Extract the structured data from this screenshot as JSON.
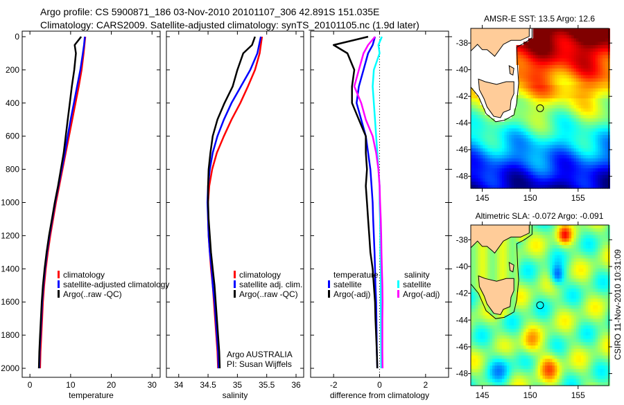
{
  "title_line1": "Argo profile: CS 5900871_186 03-Nov-2010 20101107_306 42.891S 151.035E",
  "title_line2": "Climatology: CARS2009. Satellite-adjusted climatology: synTS_20101105.nc (1.9d later)",
  "footer_stamp": "CSIRO 11-Nov-2010 10:31:09",
  "colors": {
    "climatology": "#ff0000",
    "satellite": "#0000ff",
    "argo": "#000000",
    "sal_satellite": "#00ffff",
    "sal_argo": "#ff00ff",
    "land": "#ffcc99"
  },
  "chart_data": [
    {
      "type": "line",
      "name": "temperature",
      "xlabel": "temperature",
      "ylabel": "",
      "xlim": [
        -1.9,
        32
      ],
      "ylim": [
        2000,
        0
      ],
      "xticks": [
        "0",
        "10",
        "20",
        "30"
      ],
      "xtick_values": [
        0,
        10,
        20,
        30
      ],
      "yticks": [
        "0",
        "200",
        "400",
        "600",
        "800",
        "1000",
        "1200",
        "1400",
        "1600",
        "1800",
        "2000"
      ],
      "ytick_values": [
        0,
        200,
        400,
        600,
        800,
        1000,
        1200,
        1400,
        1600,
        1800,
        2000
      ],
      "depth": [
        0,
        50,
        100,
        200,
        300,
        400,
        500,
        600,
        700,
        800,
        900,
        1000,
        1100,
        1200,
        1300,
        1400,
        1500,
        1600,
        1700,
        1800,
        1900,
        2000
      ],
      "series": [
        {
          "name": "climatology",
          "color": "#ff0000",
          "values": [
            13.6,
            13.4,
            13.2,
            12.7,
            12.0,
            11.2,
            10.4,
            9.6,
            8.8,
            8.0,
            7.2,
            6.4,
            5.7,
            5.0,
            4.4,
            3.9,
            3.5,
            3.2,
            3.0,
            2.8,
            2.6,
            2.5
          ]
        },
        {
          "name": "satellite-adjusted climatology",
          "color": "#0000ff",
          "values": [
            13.5,
            13.3,
            13.0,
            12.4,
            11.6,
            10.8,
            10.0,
            9.3,
            8.6,
            7.8,
            7.0,
            6.2,
            5.5,
            4.8,
            4.2,
            3.7,
            3.3,
            3.0,
            2.8,
            2.6,
            2.4,
            2.3
          ]
        },
        {
          "name": "Argo(..raw -QC)",
          "color": "#000000",
          "values": [
            12.6,
            11.0,
            11.3,
            10.9,
            10.3,
            9.8,
            9.3,
            8.8,
            8.3,
            7.6,
            6.9,
            6.1,
            5.4,
            4.7,
            4.1,
            3.6,
            3.2,
            2.9,
            2.7,
            2.5,
            2.3,
            2.2
          ]
        }
      ],
      "legend": [
        "climatology",
        "satellite-adjusted climatology",
        "Argo(..raw -QC)"
      ],
      "legend_position": "lower-center"
    },
    {
      "type": "line",
      "name": "salinity",
      "xlabel": "salinity",
      "xlim": [
        33.79,
        36.13
      ],
      "ylim": [
        2000,
        0
      ],
      "xticks": [
        "34",
        "34.5",
        "35",
        "35.5",
        "36"
      ],
      "xtick_values": [
        34,
        34.5,
        35,
        35.5,
        36
      ],
      "depth": [
        0,
        50,
        100,
        200,
        300,
        400,
        500,
        600,
        700,
        800,
        900,
        1000,
        1100,
        1200,
        1300,
        1400,
        1500,
        1600,
        1700,
        1800,
        1900,
        2000
      ],
      "series": [
        {
          "name": "climatology",
          "color": "#ff0000",
          "values": [
            35.42,
            35.4,
            35.38,
            35.3,
            35.18,
            35.05,
            34.9,
            34.77,
            34.65,
            34.57,
            34.52,
            34.5,
            34.5,
            34.51,
            34.53,
            34.55,
            34.58,
            34.6,
            34.62,
            34.64,
            34.66,
            34.67
          ]
        },
        {
          "name": "satellite adj. clim.",
          "color": "#0000ff",
          "values": [
            35.4,
            35.37,
            35.34,
            35.22,
            35.06,
            34.9,
            34.77,
            34.66,
            34.58,
            34.53,
            34.5,
            34.49,
            34.5,
            34.51,
            34.53,
            34.56,
            34.58,
            34.61,
            34.63,
            34.65,
            34.67,
            34.68
          ]
        },
        {
          "name": "Argo(..raw -QC)",
          "color": "#000000",
          "values": [
            35.3,
            35.25,
            35.1,
            35.0,
            34.92,
            34.78,
            34.66,
            34.58,
            34.54,
            34.51,
            34.5,
            34.5,
            34.51,
            34.53,
            34.55,
            34.58,
            34.61,
            34.63,
            34.65,
            34.67,
            34.69,
            34.7
          ]
        }
      ],
      "legend": [
        "climatology",
        "satellite adj. clim.",
        "Argo(..raw -QC)"
      ],
      "legend_position": "lower-right",
      "annotation": [
        "Argo AUSTRALIA",
        "PI: Susan Wijffels"
      ]
    },
    {
      "type": "line",
      "name": "difference",
      "xlabel": "difference from climatology",
      "xlim": [
        -3,
        3
      ],
      "ylim": [
        2000,
        0
      ],
      "xticks": [
        "-2",
        "0",
        "2"
      ],
      "xtick_values": [
        -2,
        0,
        2
      ],
      "depth": [
        0,
        50,
        100,
        200,
        300,
        400,
        500,
        600,
        700,
        800,
        900,
        1000,
        1100,
        1200,
        1300,
        1400,
        1500,
        1600,
        1700,
        1800,
        1900,
        2000
      ],
      "series": [
        {
          "name": "temperature satellite",
          "color": "#0000ff",
          "values": [
            -0.2,
            -0.3,
            -0.5,
            -0.7,
            -0.9,
            -1.0,
            -0.8,
            -0.6,
            -0.5,
            -0.4,
            -0.35,
            -0.3,
            -0.28,
            -0.25,
            -0.22,
            -0.2,
            -0.18,
            -0.15,
            -0.14,
            -0.13,
            -0.12,
            -0.1
          ]
        },
        {
          "name": "temperature Argo(-adj)",
          "color": "#000000",
          "values": [
            -0.5,
            -2.0,
            -1.4,
            -1.1,
            -1.2,
            -1.2,
            -0.9,
            -0.6,
            -0.6,
            -0.55,
            -0.6,
            -0.55,
            -0.5,
            -0.45,
            -0.4,
            -0.3,
            -0.25,
            -0.2,
            -0.18,
            -0.15,
            -0.12,
            -0.1
          ]
        },
        {
          "name": "salinity satellite",
          "color": "#00ffff",
          "values": [
            0.1,
            -0.05,
            0.0,
            -0.25,
            -0.3,
            -0.25,
            -0.2,
            -0.15,
            -0.1,
            -0.05,
            0.0,
            0.0,
            0.02,
            0.03,
            0.03,
            0.05,
            0.05,
            0.05,
            0.06,
            0.06,
            0.07,
            0.07
          ]
        },
        {
          "name": "salinity Argo(-adj)",
          "color": "#ff00ff",
          "values": [
            -0.2,
            -0.5,
            -0.7,
            -0.9,
            -1.1,
            -0.8,
            -0.6,
            -0.3,
            -0.15,
            -0.05,
            0.0,
            0.02,
            0.05,
            0.07,
            0.08,
            0.1,
            0.12,
            0.13,
            0.12,
            0.12,
            0.12,
            0.13
          ]
        }
      ],
      "legend_headers": [
        "temperature",
        "salinity"
      ],
      "legend": [
        "satellite",
        "Argo(-adj)",
        "satellite",
        "Argo(-adj)"
      ],
      "legend_position": "lower-center"
    },
    {
      "type": "heatmap",
      "name": "sst-map",
      "title": "AMSR-E SST: 13.5 Argo: 12.6",
      "xlim": [
        143.8,
        158.2
      ],
      "ylim": [
        -48.9,
        -36.9
      ],
      "xticks": [
        "145",
        "150",
        "155"
      ],
      "xtick_values": [
        145,
        150,
        155
      ],
      "yticks": [
        "-38",
        "-40",
        "-42",
        "-44",
        "-46",
        "-48"
      ],
      "ytick_values": [
        -38,
        -40,
        -42,
        -44,
        -46,
        -48
      ],
      "profile_location": [
        151.035,
        -42.891
      ],
      "color_range": [
        8,
        18
      ]
    },
    {
      "type": "heatmap",
      "name": "sla-map",
      "title": "Altimetric SLA: -0.072 Argo: -0.091",
      "xlim": [
        143.8,
        158.2
      ],
      "ylim": [
        -48.9,
        -36.9
      ],
      "xticks": [
        "145",
        "150",
        "155"
      ],
      "xtick_values": [
        145,
        150,
        155
      ],
      "yticks": [
        "-38",
        "-40",
        "-42",
        "-44",
        "-46",
        "-48"
      ],
      "ytick_values": [
        -38,
        -40,
        -42,
        -44,
        -46,
        -48
      ],
      "profile_location": [
        151.035,
        -42.891
      ],
      "color_range": [
        -0.4,
        0.4
      ]
    }
  ]
}
